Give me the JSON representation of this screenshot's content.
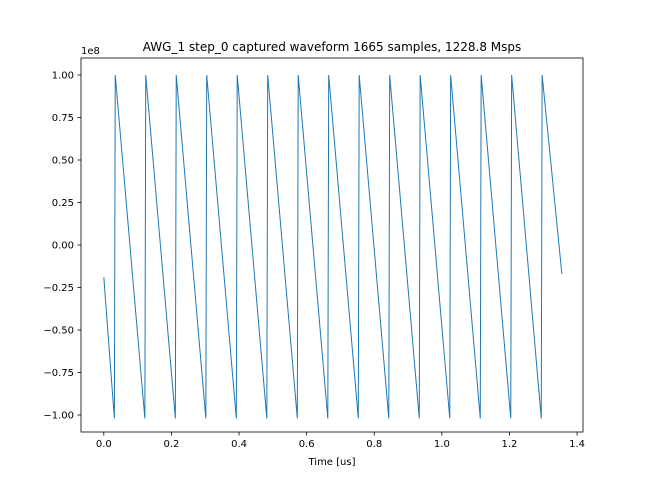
{
  "chart_data": {
    "type": "line",
    "title": "AWG_1 step_0 captured waveform 1665 samples, 1228.8 Msps",
    "xlabel": "Time [us]",
    "ylabel": "",
    "y_offset_label": "1e8",
    "xlim": [
      -0.0675,
      1.4175
    ],
    "ylim": [
      -1.1,
      1.1
    ],
    "xticks": [
      0.0,
      0.2,
      0.4,
      0.6,
      0.8,
      1.0,
      1.2,
      1.4
    ],
    "xtick_labels": [
      "0.0",
      "0.2",
      "0.4",
      "0.6",
      "0.8",
      "1.0",
      "1.2",
      "1.4"
    ],
    "yticks": [
      -1.0,
      -0.75,
      -0.5,
      -0.25,
      0.0,
      0.25,
      0.5,
      0.75,
      1.0
    ],
    "ytick_labels": [
      "−1.00",
      "−0.75",
      "−0.50",
      "−0.25",
      "0.00",
      "0.25",
      "0.50",
      "0.75",
      "1.00"
    ],
    "grid": false,
    "series": [
      {
        "color": "#1f77b4",
        "x": [
          0.0,
          0.0312,
          0.0312,
          0.0338,
          0.1214,
          0.1214,
          0.124,
          0.2116,
          0.2116,
          0.2142,
          0.3018,
          0.3018,
          0.3044,
          0.392,
          0.392,
          0.3946,
          0.4822,
          0.4822,
          0.4848,
          0.5724,
          0.5724,
          0.575,
          0.6626,
          0.6626,
          0.6652,
          0.7528,
          0.7528,
          0.7554,
          0.843,
          0.843,
          0.8456,
          0.9332,
          0.9332,
          0.9358,
          1.0234,
          1.0234,
          1.026,
          1.1136,
          1.1136,
          1.1162,
          1.2038,
          1.2038,
          1.2064,
          1.294,
          1.294,
          1.2966,
          1.355
        ],
        "y": [
          -0.19,
          -1.02,
          -1.02,
          1.0,
          -1.02,
          -1.02,
          1.0,
          -1.02,
          -1.02,
          1.0,
          -1.02,
          -1.02,
          1.0,
          -1.02,
          -1.02,
          1.0,
          -1.02,
          -1.02,
          1.0,
          -1.02,
          -1.02,
          1.0,
          -1.02,
          -1.02,
          1.0,
          -1.02,
          -1.02,
          1.0,
          -1.02,
          -1.02,
          1.0,
          -1.02,
          -1.02,
          1.0,
          -1.02,
          -1.02,
          1.0,
          -1.02,
          -1.02,
          1.0,
          -1.02,
          -1.02,
          1.0,
          -1.02,
          -1.02,
          1.0,
          -0.17
        ]
      }
    ]
  }
}
